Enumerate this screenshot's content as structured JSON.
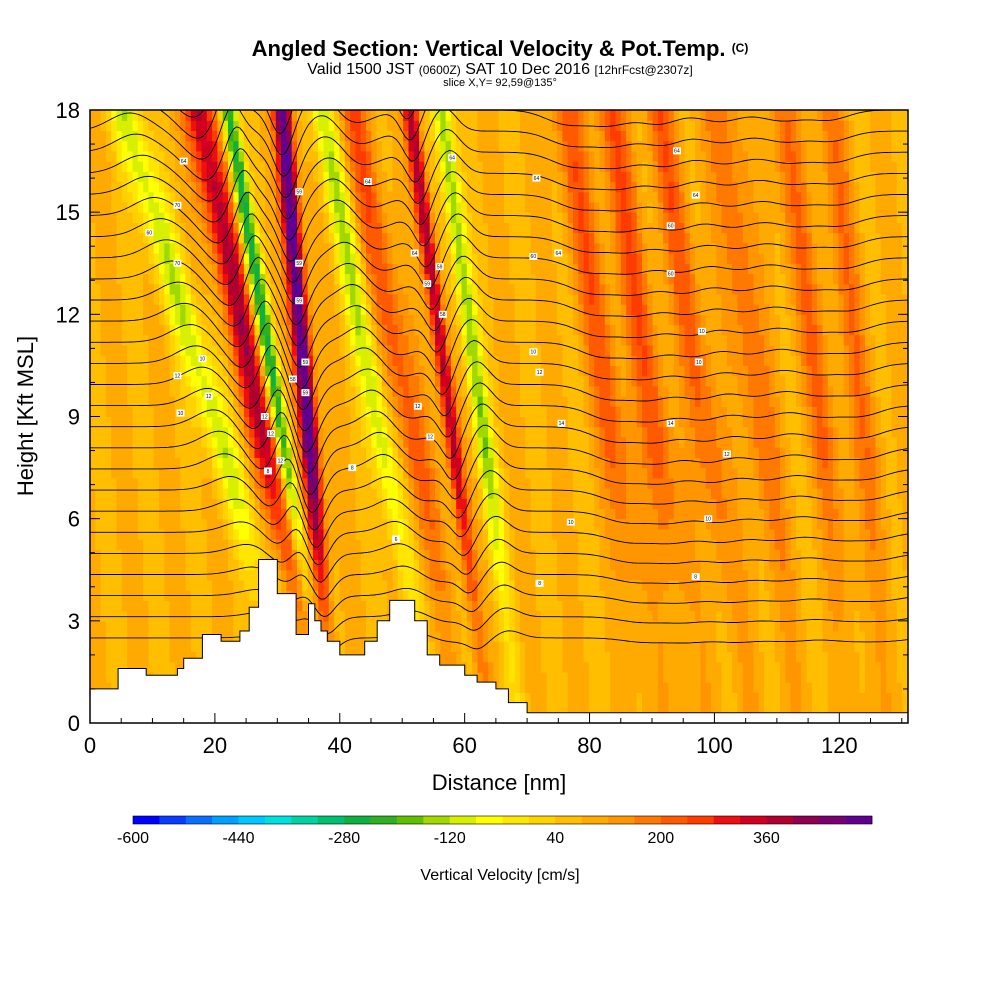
{
  "title": {
    "main": "Angled Section: Vertical Velocity & Pot.Temp.",
    "main_tag": "(C)",
    "valid_prefix": "Valid 1500 JST",
    "valid_utc": "(0600Z)",
    "valid_date": "SAT 10 Dec 2016",
    "valid_fcst": "[12hrFcst@2307z]",
    "slice": "slice X,Y= 92,59@135°"
  },
  "chart_data": {
    "type": "heatmap",
    "xlabel": "Distance [nm]",
    "ylabel": "Height [Kft MSL]",
    "xlim": [
      0,
      131
    ],
    "ylim": [
      0,
      18
    ],
    "x_ticks": [
      0,
      20,
      40,
      60,
      80,
      100,
      120
    ],
    "y_ticks": [
      0,
      3,
      6,
      9,
      12,
      15,
      18
    ],
    "colorbar": {
      "title": "Vertical Velocity [cm/s]",
      "min": -600,
      "max": 520,
      "labels": [
        -600,
        -440,
        -280,
        -120,
        40,
        200,
        360
      ],
      "colors": [
        "#0000ff",
        "#0a3cff",
        "#0a6eff",
        "#00a0ff",
        "#00c8ff",
        "#00e0e0",
        "#00d2a0",
        "#00c070",
        "#10b040",
        "#30b020",
        "#60c000",
        "#a0d800",
        "#d8f000",
        "#ffff00",
        "#ffe600",
        "#ffd200",
        "#ffbe00",
        "#ffaa00",
        "#ff9600",
        "#ff7800",
        "#ff5a00",
        "#ff3c00",
        "#ee1010",
        "#d00020",
        "#b00030",
        "#900050",
        "#780070",
        "#600090"
      ]
    },
    "terrain": [
      [
        0,
        1
      ],
      [
        4.5,
        1
      ],
      [
        4.5,
        1.6
      ],
      [
        9,
        1.6
      ],
      [
        9,
        1.4
      ],
      [
        14,
        1.4
      ],
      [
        14,
        1.6
      ],
      [
        15,
        1.6
      ],
      [
        15,
        1.9
      ],
      [
        18,
        1.9
      ],
      [
        18,
        2.6
      ],
      [
        21,
        2.6
      ],
      [
        21,
        2.4
      ],
      [
        24,
        2.4
      ],
      [
        24,
        2.7
      ],
      [
        25.5,
        2.7
      ],
      [
        25.5,
        3.4
      ],
      [
        27,
        3.4
      ],
      [
        27,
        4.8
      ],
      [
        30,
        4.8
      ],
      [
        30,
        3.8
      ],
      [
        33,
        3.8
      ],
      [
        33,
        2.6
      ],
      [
        35,
        2.6
      ],
      [
        35,
        3.5
      ],
      [
        36,
        3.5
      ],
      [
        36,
        3.0
      ],
      [
        37,
        3.0
      ],
      [
        37,
        2.7
      ],
      [
        38,
        2.7
      ],
      [
        38,
        2.4
      ],
      [
        40,
        2.4
      ],
      [
        40,
        2.0
      ],
      [
        44,
        2.0
      ],
      [
        44,
        2.4
      ],
      [
        46,
        2.4
      ],
      [
        46,
        3.0
      ],
      [
        48,
        3.0
      ],
      [
        48,
        3.6
      ],
      [
        52,
        3.6
      ],
      [
        52,
        3.0
      ],
      [
        54,
        3.0
      ],
      [
        54,
        2.0
      ],
      [
        56,
        2.0
      ],
      [
        56,
        1.7
      ],
      [
        60,
        1.7
      ],
      [
        60,
        1.4
      ],
      [
        62,
        1.4
      ],
      [
        62,
        1.2
      ],
      [
        65,
        1.2
      ],
      [
        65,
        1.0
      ],
      [
        67,
        1.0
      ],
      [
        67,
        0.6
      ],
      [
        70,
        0.6
      ],
      [
        70,
        0.3
      ],
      [
        131,
        0.3
      ]
    ],
    "contour_labels": [
      {
        "x": 15,
        "y": 16.5,
        "text": "64"
      },
      {
        "x": 14,
        "y": 15.2,
        "text": "70"
      },
      {
        "x": 9.5,
        "y": 14.4,
        "text": "60"
      },
      {
        "x": 14,
        "y": 13.5,
        "text": "70"
      },
      {
        "x": 18,
        "y": 10.7,
        "text": "10"
      },
      {
        "x": 14,
        "y": 10.2,
        "text": "12"
      },
      {
        "x": 19,
        "y": 9.6,
        "text": "12"
      },
      {
        "x": 14.5,
        "y": 9.1,
        "text": "10"
      },
      {
        "x": 28,
        "y": 9.0,
        "text": "12"
      },
      {
        "x": 29,
        "y": 8.5,
        "text": "12"
      },
      {
        "x": 30.5,
        "y": 7.7,
        "text": "12"
      },
      {
        "x": 28.5,
        "y": 7.4,
        "text": "8"
      },
      {
        "x": 33.5,
        "y": 15.6,
        "text": "59"
      },
      {
        "x": 33.5,
        "y": 13.5,
        "text": "59"
      },
      {
        "x": 33.5,
        "y": 12.4,
        "text": "59"
      },
      {
        "x": 34.5,
        "y": 10.6,
        "text": "59"
      },
      {
        "x": 32.5,
        "y": 10.1,
        "text": "58"
      },
      {
        "x": 34.5,
        "y": 9.7,
        "text": "59"
      },
      {
        "x": 44.5,
        "y": 15.9,
        "text": "64"
      },
      {
        "x": 52,
        "y": 13.8,
        "text": "64"
      },
      {
        "x": 56,
        "y": 13.4,
        "text": "59"
      },
      {
        "x": 54,
        "y": 12.9,
        "text": "59"
      },
      {
        "x": 56.5,
        "y": 12.0,
        "text": "58"
      },
      {
        "x": 58,
        "y": 16.6,
        "text": "64"
      },
      {
        "x": 52.5,
        "y": 9.3,
        "text": "12"
      },
      {
        "x": 54.5,
        "y": 8.4,
        "text": "12"
      },
      {
        "x": 42,
        "y": 7.5,
        "text": "8"
      },
      {
        "x": 49,
        "y": 5.4,
        "text": "6"
      },
      {
        "x": 71,
        "y": 13.7,
        "text": "60"
      },
      {
        "x": 75,
        "y": 13.8,
        "text": "64"
      },
      {
        "x": 71.5,
        "y": 16.0,
        "text": "64"
      },
      {
        "x": 71,
        "y": 10.9,
        "text": "10"
      },
      {
        "x": 72,
        "y": 10.3,
        "text": "12"
      },
      {
        "x": 75.5,
        "y": 8.8,
        "text": "14"
      },
      {
        "x": 77,
        "y": 5.9,
        "text": "10"
      },
      {
        "x": 72,
        "y": 4.1,
        "text": "8"
      },
      {
        "x": 94,
        "y": 16.8,
        "text": "64"
      },
      {
        "x": 97,
        "y": 15.5,
        "text": "64"
      },
      {
        "x": 93,
        "y": 14.6,
        "text": "60"
      },
      {
        "x": 93,
        "y": 13.2,
        "text": "60"
      },
      {
        "x": 98,
        "y": 11.5,
        "text": "10"
      },
      {
        "x": 97.5,
        "y": 10.6,
        "text": "10"
      },
      {
        "x": 93,
        "y": 8.8,
        "text": "14"
      },
      {
        "x": 102,
        "y": 7.9,
        "text": "12"
      },
      {
        "x": 99,
        "y": 6.0,
        "text": "10"
      },
      {
        "x": 97,
        "y": 4.3,
        "text": "8"
      }
    ]
  }
}
